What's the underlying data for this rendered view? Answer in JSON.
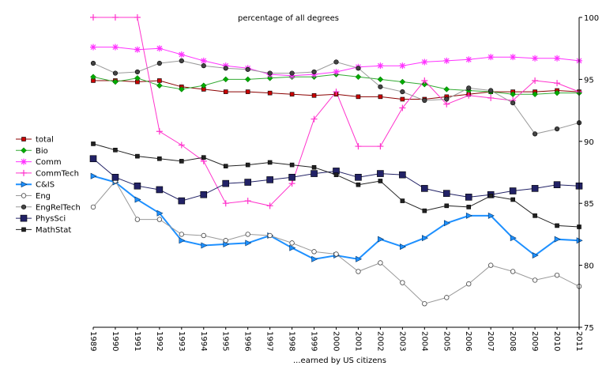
{
  "chart_data": {
    "type": "line",
    "title": "percentage of all degrees",
    "xlabel": "...earned by US citizens",
    "ylabel": "",
    "ylim": [
      75,
      100
    ],
    "yticks": [
      75,
      80,
      85,
      90,
      95,
      100
    ],
    "grid": false,
    "legend_position": "left",
    "x": [
      "1989",
      "1990",
      "1991",
      "1992",
      "1993",
      "1994",
      "1995",
      "1996",
      "1997",
      "1998",
      "1999",
      "2000",
      "2001",
      "2002",
      "2003",
      "2004",
      "2005",
      "2006",
      "2007",
      "2008",
      "2009",
      "2010",
      "2011"
    ],
    "series": [
      {
        "name": "total",
        "color": "#cc0000",
        "line_color": "#8b0000",
        "marker": "square",
        "line_width": 1,
        "values": [
          94.9,
          94.9,
          94.8,
          94.9,
          94.4,
          94.2,
          94.0,
          94.0,
          93.9,
          93.8,
          93.7,
          93.8,
          93.6,
          93.6,
          93.4,
          93.4,
          93.6,
          93.8,
          94.0,
          94.0,
          94.0,
          94.1,
          94.0
        ]
      },
      {
        "name": "Bio",
        "color": "#00aa00",
        "line_color": "#33aa33",
        "marker": "diamond",
        "line_width": 1,
        "values": [
          95.2,
          94.8,
          95.1,
          94.5,
          94.2,
          94.5,
          95.0,
          95.0,
          95.1,
          95.2,
          95.2,
          95.4,
          95.2,
          95.0,
          94.8,
          94.6,
          94.2,
          94.1,
          94.0,
          93.8,
          93.8,
          93.9,
          93.9
        ]
      },
      {
        "name": "Comm",
        "color": "#ff33ff",
        "line_color": "#ff33ff",
        "marker": "star",
        "line_width": 1,
        "values": [
          97.6,
          97.6,
          97.4,
          97.5,
          97.0,
          96.5,
          96.1,
          95.9,
          95.4,
          95.3,
          95.4,
          95.6,
          96.0,
          96.1,
          96.1,
          96.4,
          96.5,
          96.6,
          96.8,
          96.8,
          96.7,
          96.7,
          96.5
        ]
      },
      {
        "name": "CommTech",
        "color": "#ff33cc",
        "line_color": "#ff33cc",
        "marker": "plus",
        "line_width": 1,
        "values": [
          100.0,
          100.0,
          100.0,
          90.8,
          89.7,
          88.4,
          85.0,
          85.2,
          84.8,
          86.6,
          91.8,
          94.0,
          89.6,
          89.6,
          92.7,
          94.9,
          93.0,
          93.7,
          93.5,
          93.3,
          94.9,
          94.7,
          94.0
        ]
      },
      {
        "name": "C&IS",
        "color": "#1e90ff",
        "line_color": "#1e90ff",
        "marker": "triangle-right",
        "line_width": 2,
        "values": [
          87.2,
          86.7,
          85.3,
          84.2,
          82.0,
          81.6,
          81.7,
          81.8,
          82.4,
          81.4,
          80.5,
          80.8,
          80.5,
          82.1,
          81.5,
          82.2,
          83.4,
          84.0,
          84.0,
          82.2,
          80.8,
          82.1,
          82.0
        ]
      },
      {
        "name": "Eng",
        "color": "#999999",
        "line_color": "#999999",
        "marker": "circle-open",
        "line_width": 1,
        "values": [
          84.7,
          86.8,
          83.7,
          83.7,
          82.5,
          82.4,
          82.0,
          82.5,
          82.4,
          81.8,
          81.1,
          80.9,
          79.5,
          80.2,
          78.6,
          76.9,
          77.4,
          78.5,
          80.0,
          79.5,
          78.8,
          79.2,
          78.3
        ]
      },
      {
        "name": "EngRelTech",
        "color": "#444444",
        "line_color": "#999999",
        "marker": "circle",
        "line_width": 1,
        "values": [
          96.3,
          95.5,
          95.6,
          96.3,
          96.5,
          96.1,
          95.9,
          95.8,
          95.5,
          95.5,
          95.6,
          96.4,
          95.9,
          94.4,
          94.0,
          93.3,
          93.4,
          94.3,
          94.1,
          93.1,
          90.6,
          91.0,
          91.5
        ]
      },
      {
        "name": "PhysSci",
        "color": "#222266",
        "line_color": "#222266",
        "marker": "square-big",
        "line_width": 1,
        "values": [
          88.6,
          87.1,
          86.4,
          86.1,
          85.2,
          85.7,
          86.6,
          86.7,
          86.9,
          87.1,
          87.4,
          87.6,
          87.1,
          87.4,
          87.3,
          86.2,
          85.8,
          85.5,
          85.7,
          86.0,
          86.2,
          86.5,
          86.4
        ]
      },
      {
        "name": "MathStat",
        "color": "#222222",
        "line_color": "#222222",
        "marker": "square",
        "line_width": 1,
        "values": [
          89.8,
          89.3,
          88.8,
          88.6,
          88.4,
          88.7,
          88.0,
          88.1,
          88.3,
          88.1,
          87.9,
          87.3,
          86.5,
          86.8,
          85.2,
          84.4,
          84.8,
          84.7,
          85.6,
          85.3,
          84.0,
          83.2,
          83.1
        ]
      }
    ]
  }
}
